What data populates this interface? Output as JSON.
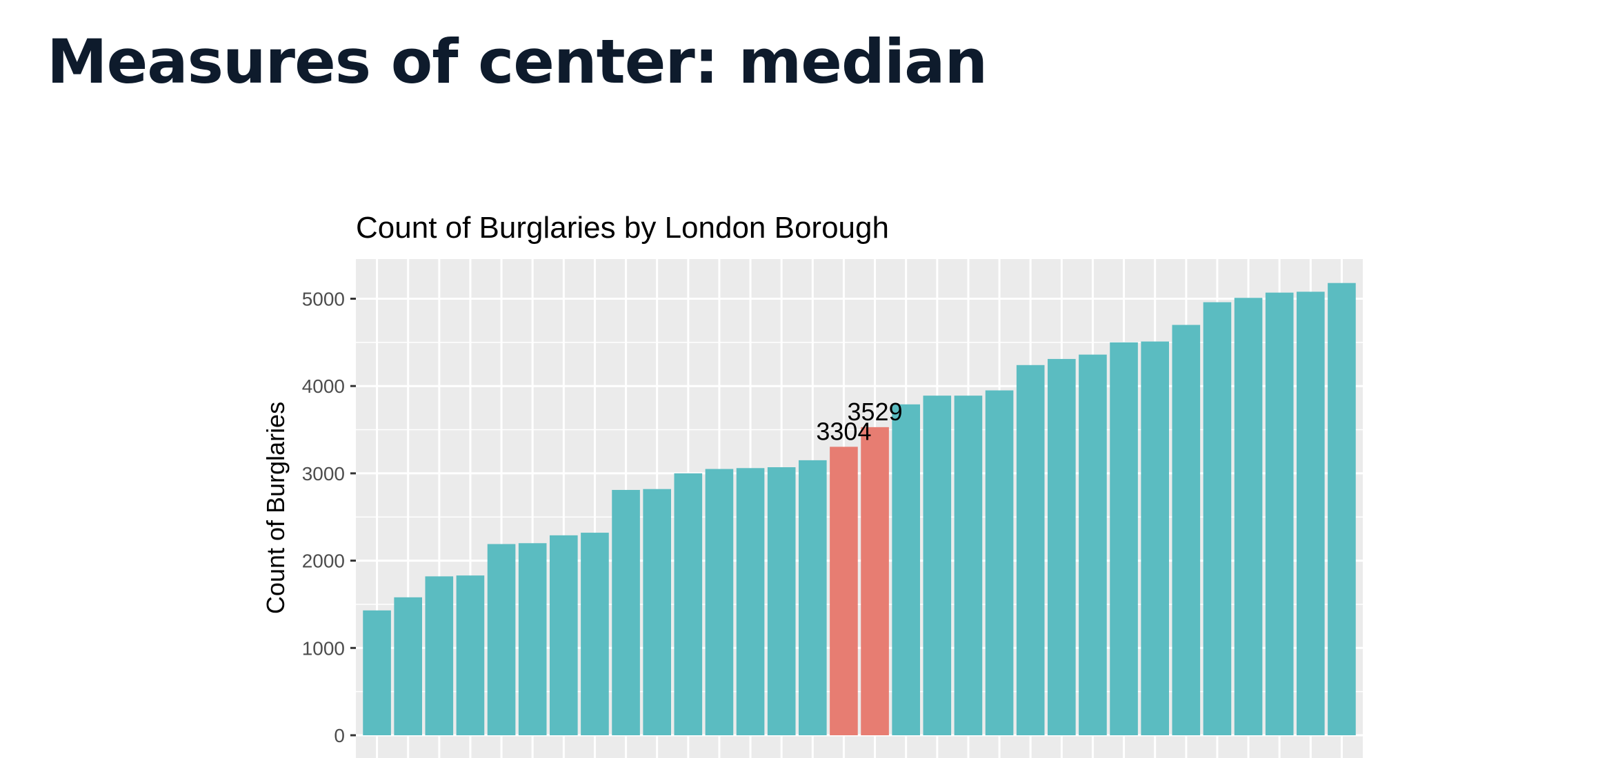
{
  "slide": {
    "title": "Measures of center: median"
  },
  "chart_data": {
    "type": "bar",
    "title": "Count of Burglaries by London Borough",
    "xlabel": "",
    "ylabel": "Count of Burglaries",
    "ylim": [
      0,
      5450
    ],
    "yticks": [
      0,
      1000,
      2000,
      3000,
      4000,
      5000
    ],
    "yticks_labels": [
      "0",
      "1000",
      "2000",
      "3000",
      "4000",
      "5000"
    ],
    "grid": true,
    "values": [
      1430,
      1580,
      1820,
      1830,
      2190,
      2200,
      2290,
      2320,
      2810,
      2820,
      3000,
      3050,
      3060,
      3070,
      3150,
      3304,
      3529,
      3790,
      3890,
      3890,
      3950,
      4240,
      4310,
      4360,
      4500,
      4510,
      4700,
      4960,
      5010,
      5070,
      5080,
      5180
    ],
    "highlight_indices": [
      15,
      16
    ],
    "annotations": [
      {
        "index": 15,
        "text": "3304"
      },
      {
        "index": 16,
        "text": "3529"
      }
    ],
    "colors": {
      "bar": "#5bbcc1",
      "highlight": "#e77d72",
      "panel": "#ebebeb",
      "grid": "#ffffff"
    }
  }
}
